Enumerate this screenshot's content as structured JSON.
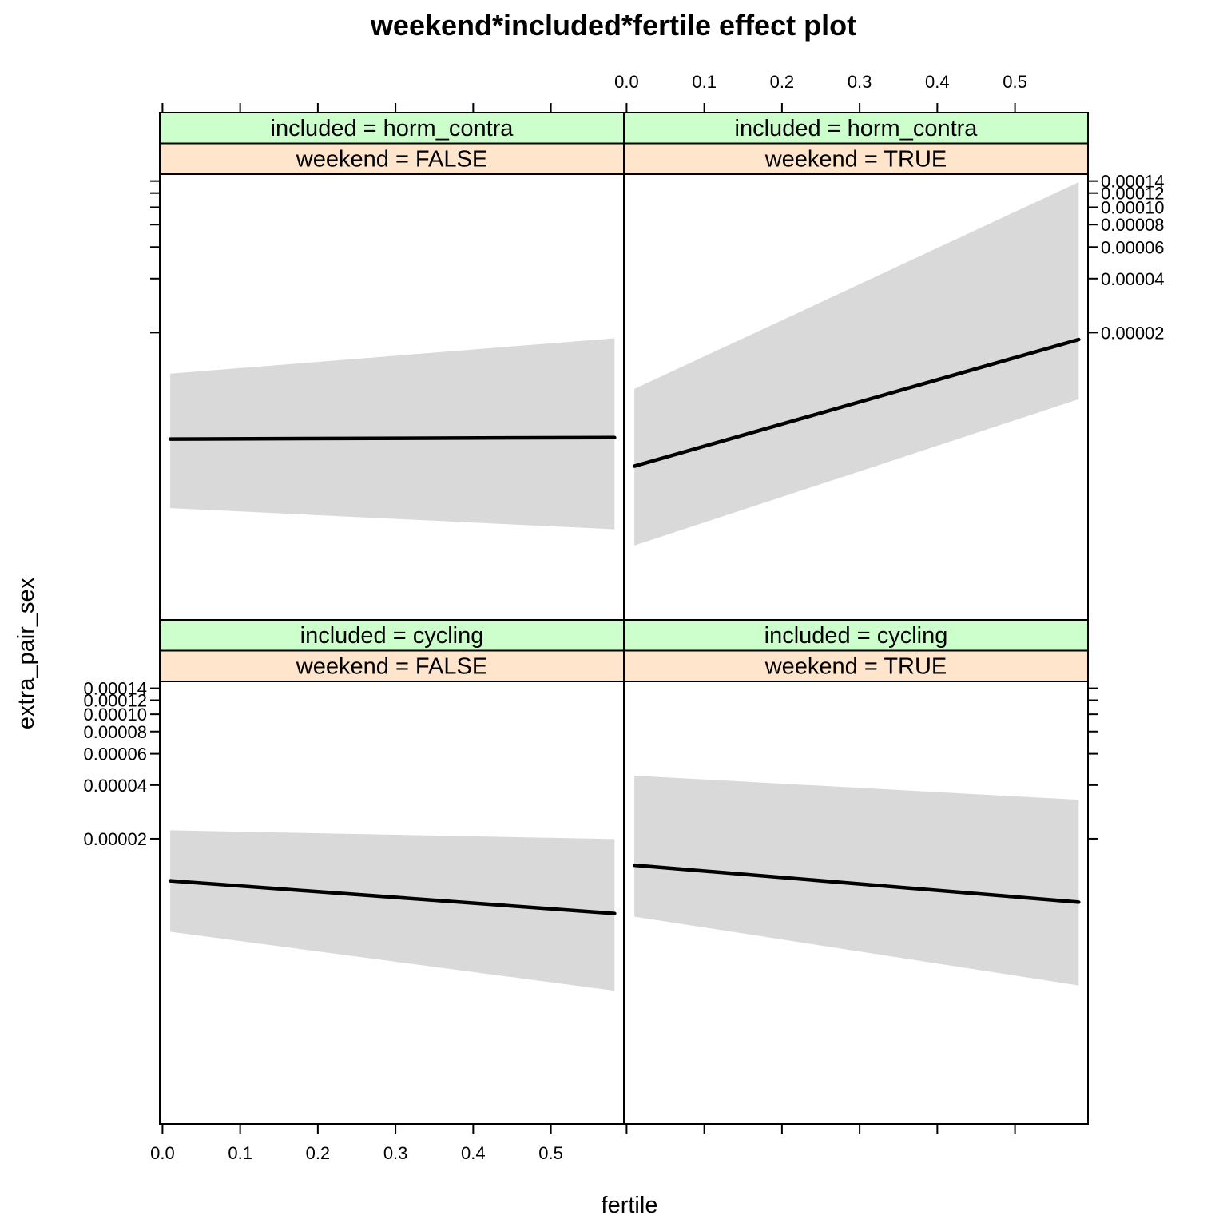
{
  "chart_data": {
    "type": "line",
    "title": "weekend*included*fertile effect plot",
    "xlabel": "fertile",
    "ylabel": "extra_pair_sex",
    "x_ticks": [
      0.0,
      0.1,
      0.2,
      0.3,
      0.4,
      0.5
    ],
    "x_tick_labels": [
      "0.0",
      "0.1",
      "0.2",
      "0.3",
      "0.4",
      "0.5"
    ],
    "xlim": [
      -0.0035,
      0.594
    ],
    "y_scale": "log",
    "y_ticks": [
      2e-05,
      4e-05,
      6e-05,
      8e-05,
      0.0001,
      0.00012,
      0.00014
    ],
    "y_tick_labels": [
      "0.00002",
      "0.00004",
      "0.00006",
      "0.00008",
      "0.00010",
      "0.00012",
      "0.00014"
    ],
    "ylim": [
      5e-07,
      0.000153
    ],
    "panels": [
      {
        "col": 0,
        "row": 0,
        "included_label": "included = horm_contra",
        "weekend_label": "weekend = FALSE",
        "x": [
          0.01,
          0.582
        ],
        "fit": [
          5.1e-06,
          5.2e-06
        ],
        "lower": [
          2.1e-06,
          1.6e-06
        ],
        "upper": [
          1.18e-05,
          1.86e-05
        ]
      },
      {
        "col": 1,
        "row": 0,
        "included_label": "included = horm_contra",
        "weekend_label": "weekend = TRUE",
        "x": [
          0.01,
          0.582
        ],
        "fit": [
          3.6e-06,
          1.83e-05
        ],
        "lower": [
          1.3e-06,
          8.5e-06
        ],
        "upper": [
          9.7e-06,
          0.000138
        ]
      },
      {
        "col": 0,
        "row": 1,
        "included_label": "included = cycling",
        "weekend_label": "weekend = FALSE",
        "x": [
          0.01,
          0.582
        ],
        "fit": [
          1.16e-05,
          7.6e-06
        ],
        "lower": [
          6e-06,
          2.8e-06
        ],
        "upper": [
          2.23e-05,
          1.99e-05
        ]
      },
      {
        "col": 1,
        "row": 1,
        "included_label": "included = cycling",
        "weekend_label": "weekend = TRUE",
        "x": [
          0.01,
          0.582
        ],
        "fit": [
          1.42e-05,
          8.8e-06
        ],
        "lower": [
          7.3e-06,
          3e-06
        ],
        "upper": [
          4.52e-05,
          3.31e-05
        ]
      }
    ],
    "colors": {
      "band": "#d9d9d9",
      "line": "#000000",
      "strip_included": "#ccffcc",
      "strip_weekend": "#ffe5cc"
    }
  }
}
